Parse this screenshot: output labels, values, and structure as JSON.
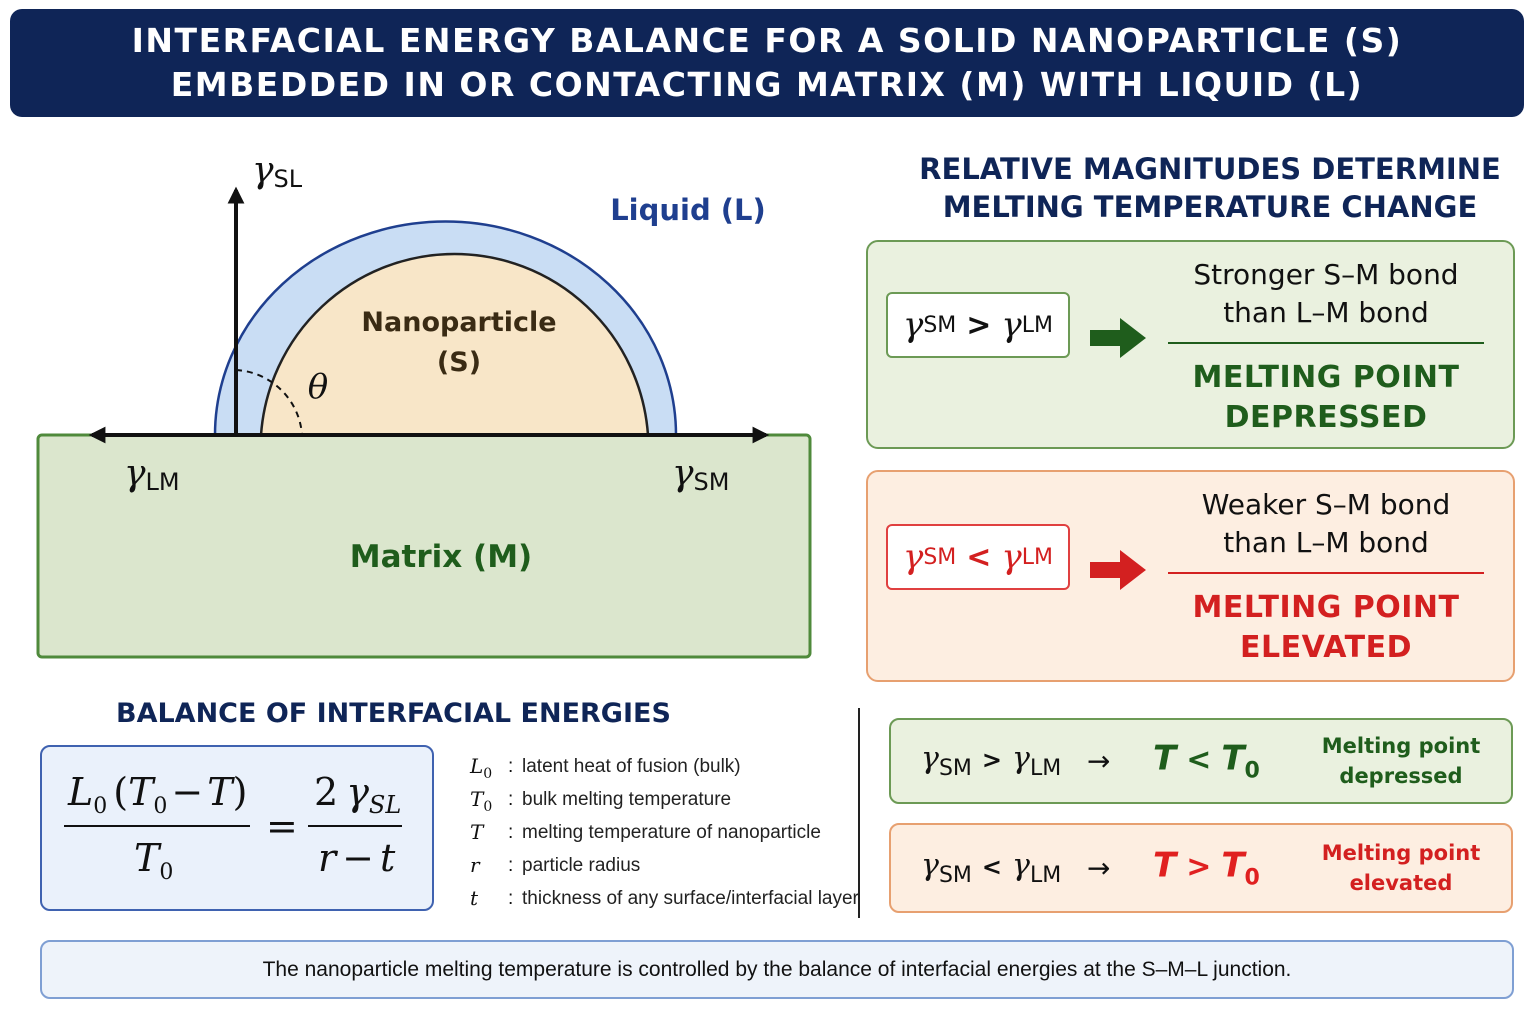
{
  "header": {
    "line1": "INTERFACIAL ENERGY BALANCE FOR A SOLID NANOPARTICLE (S)",
    "line2": "EMBEDDED IN OR CONTACTING MATRIX (M) WITH LIQUID (L)"
  },
  "diagram": {
    "gamma_sl": "γ",
    "gamma_sl_sub": "SL",
    "liquid_label": "Liquid (L)",
    "nanoparticle_label_1": "Nanoparticle",
    "nanoparticle_label_2": "(S)",
    "theta": "θ",
    "gamma_lm": "γ",
    "gamma_lm_sub": "LM",
    "gamma_sm": "γ",
    "gamma_sm_sub": "SM",
    "matrix_label": "Matrix (M)"
  },
  "right": {
    "title_line1": "RELATIVE MAGNITUDES DETERMINE",
    "title_line2": "MELTING TEMPERATURE CHANGE",
    "case_greater": {
      "lhs": "γ",
      "lhs_sub": "SM",
      "op": ">",
      "rhs": "γ",
      "rhs_sub": "LM",
      "text_line1": "Stronger S–M bond",
      "text_line2": "than L–M bond",
      "result_line1": "MELTING POINT",
      "result_line2": "DEPRESSED"
    },
    "case_less": {
      "lhs": "γ",
      "lhs_sub": "SM",
      "op": "<",
      "rhs": "γ",
      "rhs_sub": "LM",
      "text_line1": "Weaker S–M bond",
      "text_line2": "than L–M bond",
      "result_line1": "MELTING POINT",
      "result_line2": "ELEVATED"
    }
  },
  "balance": {
    "title": "BALANCE OF INTERFACIAL ENERGIES",
    "equation": {
      "num_L": "L",
      "num_L_sub": "0",
      "num_open": "(",
      "num_T0": "T",
      "num_T0_sub": "0",
      "num_minus": "−",
      "num_T": "T",
      "num_close": ")",
      "den_T": "T",
      "den_T_sub": "0",
      "equals": "=",
      "rhs_2": "2",
      "rhs_gamma": "γ",
      "rhs_sub": "SL",
      "rhs_r": "r",
      "rhs_minus": "−",
      "rhs_t": "t"
    },
    "legend": [
      {
        "symbol": "L",
        "sub": "0",
        "desc": "latent heat of fusion (bulk)"
      },
      {
        "symbol": "T",
        "sub": "0",
        "desc": "bulk melting temperature"
      },
      {
        "symbol": "T",
        "sub": "",
        "desc": "melting temperature of nanoparticle"
      },
      {
        "symbol": "r",
        "sub": "",
        "desc": "particle radius"
      },
      {
        "symbol": "t",
        "sub": "",
        "desc": "thickness of any surface/interfacial layer"
      }
    ],
    "colon": ":"
  },
  "summary": {
    "row_greater": {
      "g1": "γ",
      "g1_sub": "SM",
      "op": ">",
      "g2": "γ",
      "g2_sub": "LM",
      "arrow": "→",
      "t1": "T",
      "cmp": "<",
      "t2": "T",
      "t2_sub": "0",
      "note_line1": "Melting point",
      "note_line2": "depressed"
    },
    "row_less": {
      "g1": "γ",
      "g1_sub": "SM",
      "op": "<",
      "g2": "γ",
      "g2_sub": "LM",
      "arrow": "→",
      "t1": "T",
      "cmp": ">",
      "t2": "T",
      "t2_sub": "0",
      "note_line1": "Melting point",
      "note_line2": "elevated"
    }
  },
  "footer": {
    "text": "The nanoparticle melting temperature is controlled by the balance of interfacial energies at the S–M–L junction."
  },
  "colors": {
    "navy": "#0f2557",
    "green_dark": "#1f5d1c",
    "red": "#d32020",
    "matrix_fill": "#dbe6cd",
    "particle_fill": "#f8e6c8",
    "liquid_fill": "#c9ddf4"
  }
}
